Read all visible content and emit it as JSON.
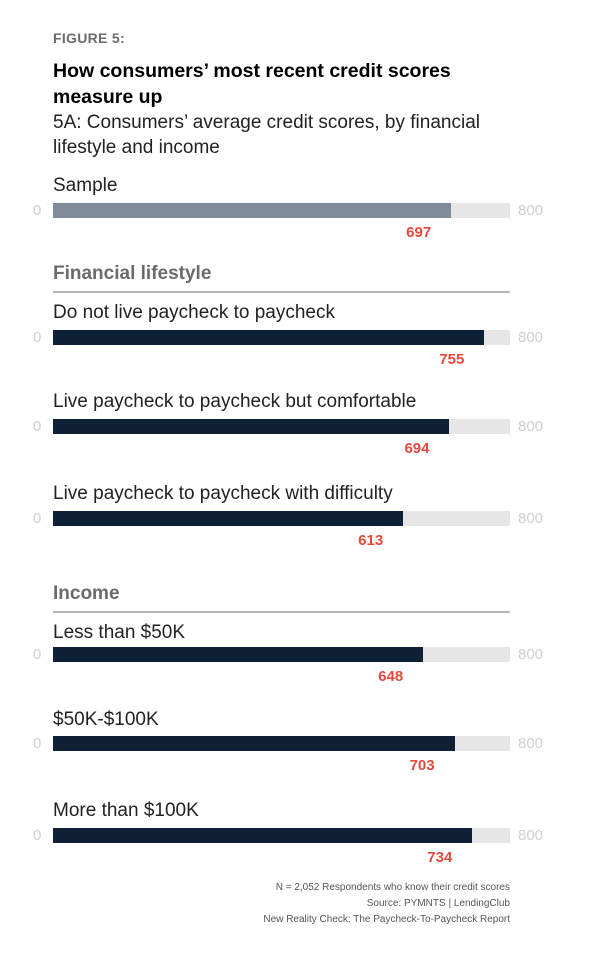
{
  "figure_label": "FIGURE 5:",
  "title": "How consumers’ most recent credit scores measure up",
  "subtitle": "5A: Consumers’ average credit scores, by financial lifestyle and income",
  "sections": {
    "financial": "Financial lifestyle",
    "income": "Income"
  },
  "colors": {
    "sample_bar": "#7f8c99",
    "main_bar": "#0e2035",
    "track": "#e6e6e6",
    "value_text": "#e44a3c"
  },
  "chart_data": {
    "type": "bar",
    "orientation": "horizontal",
    "title": "How consumers’ most recent credit scores measure up",
    "subtitle": "5A: Consumers’ average credit scores, by financial lifestyle and income",
    "xlim": [
      0,
      800
    ],
    "axis_min_label": "0",
    "axis_max_label": "800",
    "bars": [
      {
        "group": "",
        "label": "Sample",
        "value": 697,
        "display": "697",
        "style": "sample"
      },
      {
        "group": "Financial lifestyle",
        "label": "Do not live paycheck to paycheck",
        "value": 755,
        "display": "755",
        "style": "main"
      },
      {
        "group": "Financial lifestyle",
        "label": "Live paycheck to paycheck but comfortable",
        "value": 694,
        "display": "694",
        "style": "main"
      },
      {
        "group": "Financial lifestyle",
        "label": "Live paycheck to paycheck with difficulty",
        "value": 613,
        "display": "613",
        "style": "main"
      },
      {
        "group": "Income",
        "label": "Less than $50K",
        "value": 648,
        "display": "648",
        "style": "main"
      },
      {
        "group": "Income",
        "label": "$50K-$100K",
        "value": 703,
        "display": "703",
        "style": "main"
      },
      {
        "group": "Income",
        "label": "More than $100K",
        "value": 734,
        "display": "734",
        "style": "main"
      }
    ]
  },
  "notes": {
    "n": "N = 2,052 Respondents who know their credit scores",
    "source": "Source: PYMNTS  |  LendingClub",
    "report": "New Reality Check: The Paycheck-To-Paycheck Report"
  }
}
